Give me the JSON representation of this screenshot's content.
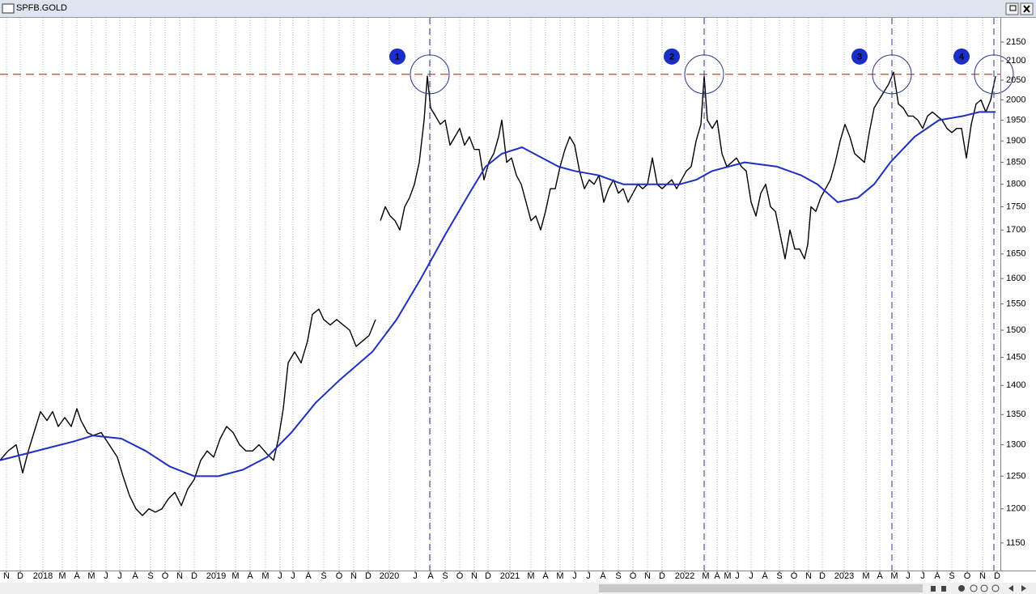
{
  "window": {
    "title": "SPFB.GOLD"
  },
  "chart_data": {
    "type": "line",
    "log_scale": true,
    "x_grid": true,
    "xlim": [
      0,
      1236
    ],
    "ylim": [
      1111,
      2216
    ],
    "yticks": [
      1150,
      1200,
      1250,
      1300,
      1350,
      1400,
      1450,
      1500,
      1550,
      1600,
      1650,
      1700,
      1750,
      1800,
      1850,
      1900,
      1950,
      2000,
      2050,
      2100,
      2150
    ],
    "xticks": [
      {
        "value": 8,
        "label": "N"
      },
      {
        "value": 25,
        "label": "D"
      },
      {
        "value": 53,
        "label": "2018"
      },
      {
        "value": 77,
        "label": "M"
      },
      {
        "value": 95,
        "label": "A"
      },
      {
        "value": 113,
        "label": "M"
      },
      {
        "value": 131,
        "label": "J"
      },
      {
        "value": 148,
        "label": "J"
      },
      {
        "value": 167,
        "label": "A"
      },
      {
        "value": 186,
        "label": "S"
      },
      {
        "value": 204,
        "label": "O"
      },
      {
        "value": 222,
        "label": "N"
      },
      {
        "value": 240,
        "label": "D"
      },
      {
        "value": 267,
        "label": "2019"
      },
      {
        "value": 291,
        "label": "M"
      },
      {
        "value": 309,
        "label": "A"
      },
      {
        "value": 328,
        "label": "M"
      },
      {
        "value": 346,
        "label": "J"
      },
      {
        "value": 362,
        "label": "J"
      },
      {
        "value": 381,
        "label": "A"
      },
      {
        "value": 400,
        "label": "S"
      },
      {
        "value": 419,
        "label": "O"
      },
      {
        "value": 437,
        "label": "N"
      },
      {
        "value": 455,
        "label": "D"
      },
      {
        "value": 481,
        "label": "2020"
      },
      {
        "value": 513,
        "label": "J"
      },
      {
        "value": 532,
        "label": "A"
      },
      {
        "value": 550,
        "label": "S"
      },
      {
        "value": 568,
        "label": "O"
      },
      {
        "value": 586,
        "label": "N"
      },
      {
        "value": 603,
        "label": "D"
      },
      {
        "value": 630,
        "label": "2021"
      },
      {
        "value": 656,
        "label": "M"
      },
      {
        "value": 674,
        "label": "A"
      },
      {
        "value": 692,
        "label": "M"
      },
      {
        "value": 710,
        "label": "J"
      },
      {
        "value": 727,
        "label": "J"
      },
      {
        "value": 745,
        "label": "A"
      },
      {
        "value": 764,
        "label": "S"
      },
      {
        "value": 782,
        "label": "O"
      },
      {
        "value": 800,
        "label": "N"
      },
      {
        "value": 818,
        "label": "D"
      },
      {
        "value": 846,
        "label": "2022"
      },
      {
        "value": 872,
        "label": "M"
      },
      {
        "value": 886,
        "label": "A"
      },
      {
        "value": 899,
        "label": "M"
      },
      {
        "value": 911,
        "label": "J"
      },
      {
        "value": 928,
        "label": "J"
      },
      {
        "value": 945,
        "label": "A"
      },
      {
        "value": 963,
        "label": "S"
      },
      {
        "value": 981,
        "label": "O"
      },
      {
        "value": 999,
        "label": "N"
      },
      {
        "value": 1016,
        "label": "D"
      },
      {
        "value": 1043,
        "label": "2023"
      },
      {
        "value": 1070,
        "label": "M"
      },
      {
        "value": 1087,
        "label": "A"
      },
      {
        "value": 1105,
        "label": "M"
      },
      {
        "value": 1122,
        "label": "J"
      },
      {
        "value": 1140,
        "label": "J"
      },
      {
        "value": 1158,
        "label": "A"
      },
      {
        "value": 1176,
        "label": "S"
      },
      {
        "value": 1195,
        "label": "O"
      },
      {
        "value": 1214,
        "label": "N"
      },
      {
        "value": 1232,
        "label": "D"
      }
    ],
    "series": [
      {
        "color": "#000000",
        "x": [
          0,
          10,
          20,
          28,
          35,
          42,
          50,
          58,
          65,
          72,
          80,
          88,
          95,
          100,
          108,
          115,
          125,
          135,
          145,
          152,
          160,
          168,
          176,
          184,
          192,
          200,
          208,
          216,
          224,
          232,
          240,
          248,
          256,
          264,
          272,
          280,
          288,
          296,
          304,
          312,
          320,
          330,
          338,
          344,
          350,
          356,
          364,
          372,
          380,
          386,
          394,
          400,
          408,
          416,
          424,
          432,
          440,
          448,
          456,
          464,
          467,
          470,
          476,
          482,
          488,
          494,
          500,
          506,
          512,
          518,
          524,
          528,
          532,
          538,
          544,
          550,
          556,
          562,
          568,
          574,
          580,
          586,
          592,
          598,
          604,
          610,
          616,
          620,
          626,
          632,
          638,
          644,
          650,
          656,
          662,
          668,
          674,
          680,
          686,
          692,
          698,
          704,
          710,
          716,
          722,
          728,
          734,
          740,
          746,
          752,
          758,
          764,
          770,
          776,
          782,
          788,
          794,
          800,
          806,
          812,
          818,
          824,
          830,
          836,
          842,
          848,
          854,
          860,
          866,
          870,
          874,
          880,
          886,
          892,
          898,
          904,
          910,
          916,
          922,
          928,
          934,
          940,
          946,
          952,
          958,
          964,
          970,
          976,
          982,
          988,
          994,
          998,
          1002,
          1008,
          1014,
          1020,
          1026,
          1032,
          1038,
          1044,
          1050,
          1056,
          1062,
          1068,
          1074,
          1080,
          1086,
          1092,
          1098,
          1104,
          1110,
          1116,
          1122,
          1128,
          1134,
          1140,
          1146,
          1152,
          1158,
          1164,
          1170,
          1176,
          1182,
          1188,
          1194,
          1200,
          1206,
          1212,
          1218,
          1224,
          1230
        ],
        "values": [
          1275,
          1290,
          1300,
          1255,
          1290,
          1320,
          1355,
          1340,
          1355,
          1330,
          1345,
          1330,
          1360,
          1340,
          1320,
          1315,
          1320,
          1300,
          1280,
          1250,
          1220,
          1200,
          1190,
          1200,
          1195,
          1200,
          1215,
          1225,
          1205,
          1230,
          1245,
          1275,
          1290,
          1280,
          1310,
          1330,
          1320,
          1300,
          1290,
          1290,
          1300,
          1285,
          1275,
          1310,
          1360,
          1440,
          1460,
          1440,
          1480,
          1530,
          1540,
          1520,
          1510,
          1520,
          1510,
          1500,
          1470,
          1480,
          1490,
          1520,
          null,
          1720,
          1750,
          1730,
          1720,
          1700,
          1750,
          1770,
          1800,
          1850,
          1950,
          2060,
          1980,
          1960,
          1940,
          1950,
          1890,
          1910,
          1930,
          1890,
          1910,
          1880,
          1880,
          1810,
          1850,
          1870,
          1910,
          1950,
          1850,
          1860,
          1820,
          1800,
          1760,
          1720,
          1730,
          1700,
          1740,
          1790,
          1790,
          1840,
          1880,
          1910,
          1890,
          1830,
          1790,
          1810,
          1800,
          1820,
          1760,
          1790,
          1810,
          1780,
          1790,
          1760,
          1780,
          1800,
          1790,
          1800,
          1860,
          1800,
          1790,
          1800,
          1810,
          1790,
          1810,
          1830,
          1840,
          1900,
          1940,
          2060,
          1950,
          1930,
          1950,
          1870,
          1840,
          1850,
          1860,
          1840,
          1830,
          1760,
          1730,
          1780,
          1800,
          1750,
          1740,
          1690,
          1640,
          1700,
          1660,
          1660,
          1640,
          1670,
          1750,
          1740,
          1770,
          1790,
          1810,
          1850,
          1900,
          1940,
          1910,
          1870,
          1860,
          1850,
          1920,
          1980,
          2000,
          2020,
          2040,
          2070,
          1990,
          1980,
          1960,
          1960,
          1950,
          1930,
          1960,
          1970,
          1960,
          1950,
          1930,
          1920,
          1930,
          1930,
          1860,
          1940,
          1990,
          2000,
          1970,
          2000,
          2060
        ]
      },
      {
        "color": "#1f2fbf",
        "x": [
          0,
          30,
          60,
          90,
          115,
          150,
          180,
          210,
          240,
          270,
          300,
          330,
          360,
          390,
          420,
          460,
          490,
          520,
          550,
          580,
          600,
          620,
          645,
          670,
          690,
          710,
          740,
          770,
          800,
          840,
          860,
          880,
          920,
          960,
          990,
          1010,
          1035,
          1060,
          1080,
          1100,
          1130,
          1160,
          1190,
          1210,
          1230
        ],
        "values": [
          1275,
          1285,
          1295,
          1305,
          1315,
          1310,
          1290,
          1265,
          1250,
          1250,
          1260,
          1280,
          1320,
          1370,
          1410,
          1460,
          1520,
          1600,
          1690,
          1780,
          1840,
          1870,
          1885,
          1860,
          1840,
          1830,
          1820,
          1800,
          1800,
          1800,
          1810,
          1830,
          1850,
          1840,
          1820,
          1800,
          1760,
          1770,
          1800,
          1850,
          1910,
          1950,
          1960,
          1970,
          1970
        ]
      }
    ],
    "level": {
      "value": 2065,
      "color": "#d62020"
    },
    "markers": [
      {
        "label": "1",
        "x": 531
      },
      {
        "label": "2",
        "x": 870
      },
      {
        "label": "3",
        "x": 1102
      },
      {
        "label": "4",
        "x": 1228
      }
    ]
  }
}
